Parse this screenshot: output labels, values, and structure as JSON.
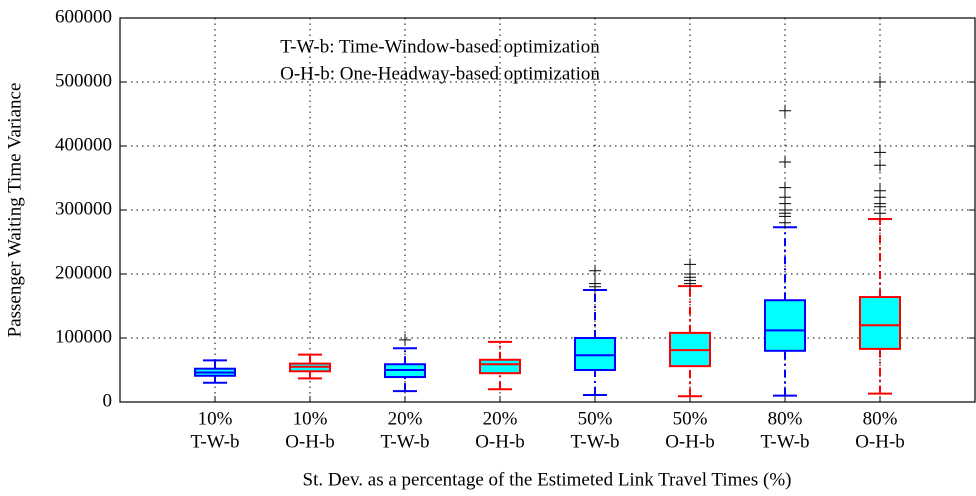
{
  "chart_data": {
    "type": "box",
    "xlabel": "St. Dev. as a percentage of the Estimeted Link Travel Times (%)",
    "ylabel": "Passenger Waiting Time Variance",
    "annotations": [
      "T-W-b: Time-Window-based optimization",
      "O-H-b: One-Headway-based optimization"
    ],
    "categories": [
      [
        "10%",
        "T-W-b"
      ],
      [
        "10%",
        "O-H-b"
      ],
      [
        "20%",
        "T-W-b"
      ],
      [
        "20%",
        "O-H-b"
      ],
      [
        "50%",
        "T-W-b"
      ],
      [
        "50%",
        "O-H-b"
      ],
      [
        "80%",
        "T-W-b"
      ],
      [
        "80%",
        "O-H-b"
      ]
    ],
    "box_fill": "#00ffff",
    "outlier_color": "#000000",
    "grid": true,
    "ylim": [
      0,
      600000
    ],
    "yticks": [
      0,
      100000,
      200000,
      300000,
      400000,
      500000,
      600000
    ],
    "boxes": [
      {
        "color": "#0000ff",
        "whisker_low": 30000,
        "q1": 41000,
        "median": 46000,
        "q3": 52000,
        "whisker_high": 65000,
        "outliers": []
      },
      {
        "color": "#ff0000",
        "whisker_low": 37000,
        "q1": 48000,
        "median": 55000,
        "q3": 60000,
        "whisker_high": 74000,
        "outliers": []
      },
      {
        "color": "#0000ff",
        "whisker_low": 17000,
        "q1": 39000,
        "median": 50000,
        "q3": 59000,
        "whisker_high": 84000,
        "outliers": [
          97000
        ]
      },
      {
        "color": "#ff0000",
        "whisker_low": 20000,
        "q1": 45000,
        "median": 59000,
        "q3": 66000,
        "whisker_high": 94000,
        "outliers": []
      },
      {
        "color": "#0000ff",
        "whisker_low": 11000,
        "q1": 50000,
        "median": 73000,
        "q3": 100000,
        "whisker_high": 175000,
        "outliers": [
          180000,
          185000,
          205000
        ]
      },
      {
        "color": "#ff0000",
        "whisker_low": 9000,
        "q1": 56000,
        "median": 81000,
        "q3": 108000,
        "whisker_high": 181000,
        "outliers": [
          185000,
          190000,
          195000,
          200000,
          215000
        ]
      },
      {
        "color": "#0000ff",
        "whisker_low": 10000,
        "q1": 80000,
        "median": 112000,
        "q3": 159000,
        "whisker_high": 273000,
        "outliers": [
          280000,
          290000,
          295000,
          300000,
          310000,
          320000,
          335000,
          375000,
          455000
        ]
      },
      {
        "color": "#ff0000",
        "whisker_low": 13000,
        "q1": 83000,
        "median": 120000,
        "q3": 164000,
        "whisker_high": 286000,
        "outliers": [
          295000,
          305000,
          310000,
          320000,
          330000,
          370000,
          390000,
          500000
        ]
      }
    ]
  }
}
